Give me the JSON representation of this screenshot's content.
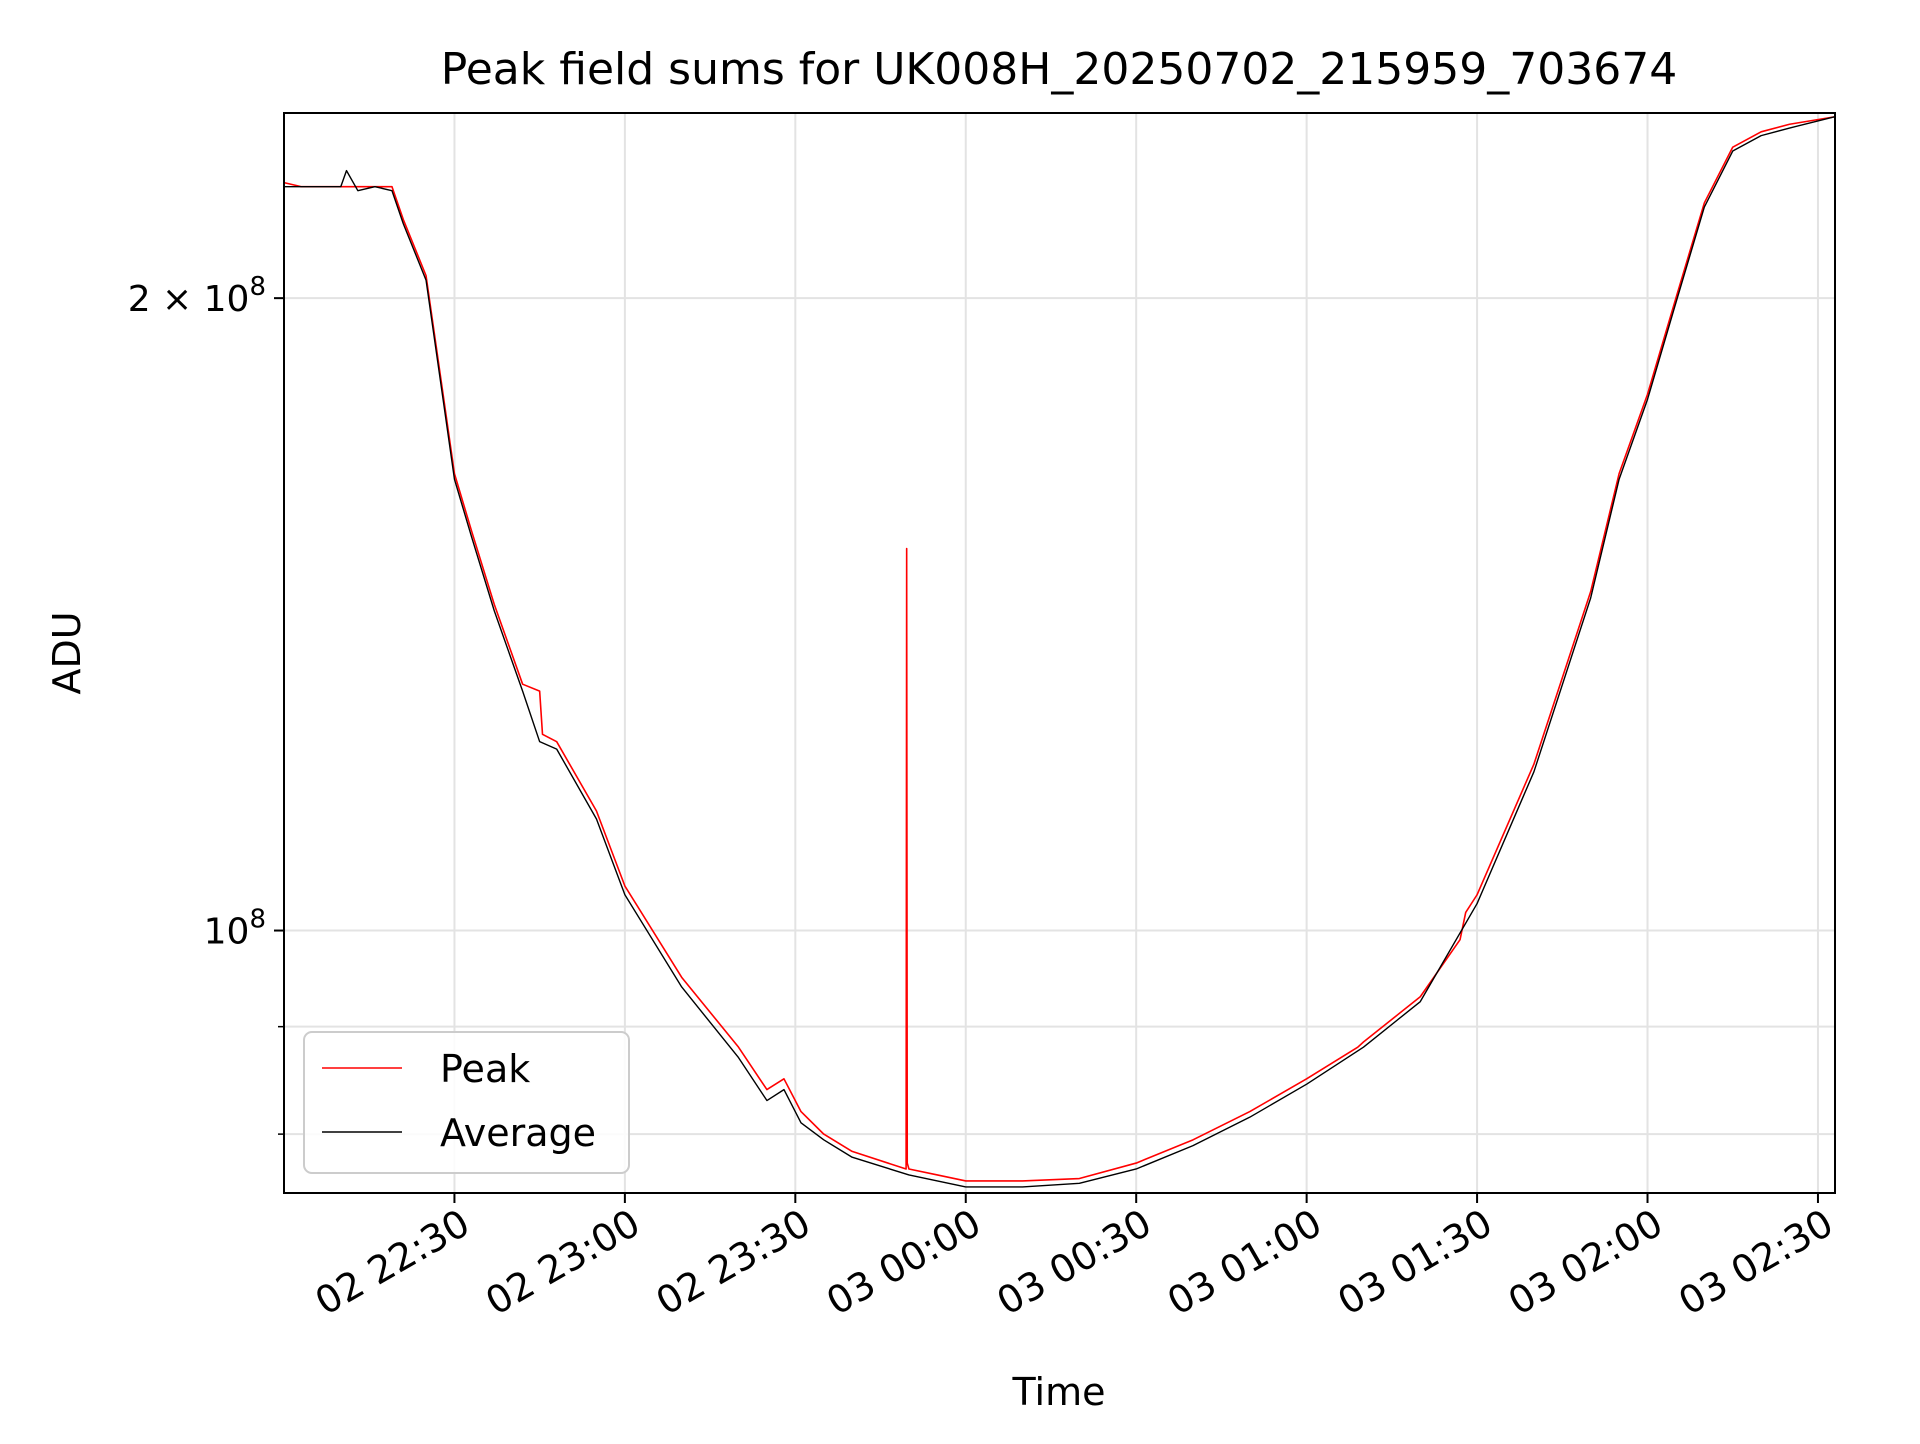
{
  "chart_data": {
    "type": "line",
    "title": "Peak field sums for UK008H_20250702_215959_703674",
    "xlabel": "Time",
    "ylabel": "ADU",
    "y_scale": "log",
    "grid": true,
    "legend_position": "lower-left",
    "xlim": [
      "2025-07-02 22:00",
      "2025-07-03 02:33"
    ],
    "ylim": [
      75000000,
      245000000
    ],
    "x_ticks": [
      {
        "value": "2025-07-02 22:30",
        "label": "02 22:30"
      },
      {
        "value": "2025-07-02 23:00",
        "label": "02 23:00"
      },
      {
        "value": "2025-07-02 23:30",
        "label": "02 23:30"
      },
      {
        "value": "2025-07-03 00:00",
        "label": "03 00:00"
      },
      {
        "value": "2025-07-03 00:30",
        "label": "03 00:30"
      },
      {
        "value": "2025-07-03 01:00",
        "label": "03 01:00"
      },
      {
        "value": "2025-07-03 01:30",
        "label": "03 01:30"
      },
      {
        "value": "2025-07-03 02:00",
        "label": "03 02:00"
      },
      {
        "value": "2025-07-03 02:30",
        "label": "03 02:30"
      }
    ],
    "y_major_ticks": [
      {
        "value": 100000000,
        "mantissa": "",
        "base": "10",
        "exponent": "8"
      },
      {
        "value": 200000000,
        "mantissa": "2 × ",
        "base": "10",
        "exponent": "8"
      }
    ],
    "y_minor_ticks": [
      80000000,
      90000000
    ],
    "series": [
      {
        "name": "Peak",
        "color": "#ff0000",
        "x": [
          "2025-07-02 22:00",
          "2025-07-02 22:03",
          "2025-07-02 22:11",
          "2025-07-02 22:16",
          "2025-07-02 22:19",
          "2025-07-02 22:21",
          "2025-07-02 22:25",
          "2025-07-02 22:28",
          "2025-07-02 22:30",
          "2025-07-02 22:33",
          "2025-07-02 22:37",
          "2025-07-02 22:42",
          "2025-07-02 22:45",
          "2025-07-02 22:45.5",
          "2025-07-02 22:48",
          "2025-07-02 22:55",
          "2025-07-02 23:00",
          "2025-07-02 23:10",
          "2025-07-02 23:20",
          "2025-07-02 23:25",
          "2025-07-02 23:28",
          "2025-07-02 23:31",
          "2025-07-02 23:35",
          "2025-07-02 23:40",
          "2025-07-02 23:49.5",
          "2025-07-02 23:49.6",
          "2025-07-02 23:49.7",
          "2025-07-02 23:50",
          "2025-07-02 23:55",
          "2025-07-03 00:00",
          "2025-07-03 00:10",
          "2025-07-03 00:20",
          "2025-07-03 00:30",
          "2025-07-03 00:40",
          "2025-07-03 00:50",
          "2025-07-03 01:00",
          "2025-07-03 01:09",
          "2025-07-03 01:10",
          "2025-07-03 01:20",
          "2025-07-03 01:27",
          "2025-07-03 01:28",
          "2025-07-03 01:30",
          "2025-07-03 01:40",
          "2025-07-03 01:50",
          "2025-07-03 01:55",
          "2025-07-03 02:00",
          "2025-07-03 02:05",
          "2025-07-03 02:10",
          "2025-07-03 02:15",
          "2025-07-03 02:20",
          "2025-07-03 02:25",
          "2025-07-03 02:33"
        ],
        "values": [
          227000000,
          226000000,
          226000000,
          226000000,
          226000000,
          218000000,
          205000000,
          180000000,
          165000000,
          155000000,
          143000000,
          131000000,
          130000000,
          124000000,
          123000000,
          114000000,
          105000000,
          95000000,
          88000000,
          84000000,
          85000000,
          82000000,
          80000000,
          78500000,
          77000000,
          152000000,
          77500000,
          77000000,
          76500000,
          76000000,
          76000000,
          76200000,
          77500000,
          79500000,
          82000000,
          85000000,
          88000000,
          88500000,
          93000000,
          99000000,
          102000000,
          104000000,
          120000000,
          145000000,
          165000000,
          180000000,
          200000000,
          222000000,
          236000000,
          240000000,
          242000000,
          244000000
        ]
      },
      {
        "name": "Average",
        "color": "#000000",
        "x": [
          "2025-07-02 22:00",
          "2025-07-02 22:03",
          "2025-07-02 22:10",
          "2025-07-02 22:11",
          "2025-07-02 22:13",
          "2025-07-02 22:16",
          "2025-07-02 22:19",
          "2025-07-02 22:21",
          "2025-07-02 22:25",
          "2025-07-02 22:28",
          "2025-07-02 22:30",
          "2025-07-02 22:33",
          "2025-07-02 22:37",
          "2025-07-02 22:42",
          "2025-07-02 22:45",
          "2025-07-02 22:48",
          "2025-07-02 22:55",
          "2025-07-02 23:00",
          "2025-07-02 23:10",
          "2025-07-02 23:20",
          "2025-07-02 23:25",
          "2025-07-02 23:28",
          "2025-07-02 23:31",
          "2025-07-02 23:35",
          "2025-07-02 23:40",
          "2025-07-02 23:50",
          "2025-07-02 23:55",
          "2025-07-03 00:00",
          "2025-07-03 00:10",
          "2025-07-03 00:20",
          "2025-07-03 00:30",
          "2025-07-03 00:40",
          "2025-07-03 00:50",
          "2025-07-03 01:00",
          "2025-07-03 01:10",
          "2025-07-03 01:20",
          "2025-07-03 01:30",
          "2025-07-03 01:40",
          "2025-07-03 01:50",
          "2025-07-03 01:55",
          "2025-07-03 02:00",
          "2025-07-03 02:05",
          "2025-07-03 02:10",
          "2025-07-03 02:15",
          "2025-07-03 02:20",
          "2025-07-03 02:25",
          "2025-07-03 02:33"
        ],
        "values": [
          226000000,
          226000000,
          226000000,
          230000000,
          225000000,
          226000000,
          225000000,
          217000000,
          204000000,
          179000000,
          164000000,
          154000000,
          142000000,
          130000000,
          123000000,
          122000000,
          113000000,
          104000000,
          94000000,
          87000000,
          83000000,
          84000000,
          81000000,
          79500000,
          78000000,
          76500000,
          76000000,
          75500000,
          75500000,
          75800000,
          77000000,
          79000000,
          81500000,
          84500000,
          88000000,
          92500000,
          103000000,
          119000000,
          144000000,
          164000000,
          179000000,
          199000000,
          221000000,
          235000000,
          239000000,
          241000000,
          244000000
        ]
      }
    ]
  }
}
